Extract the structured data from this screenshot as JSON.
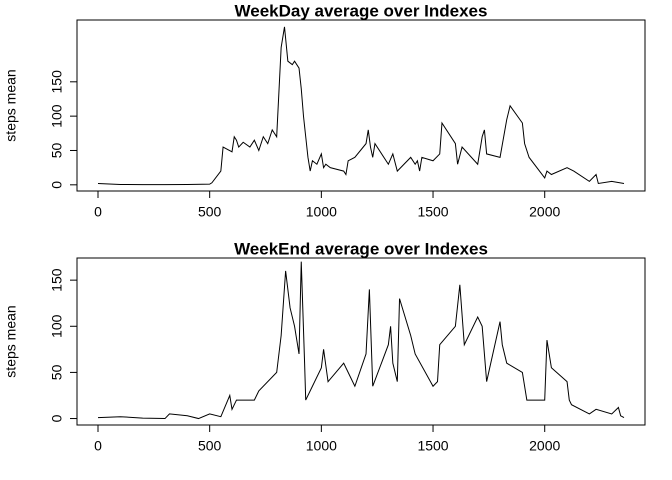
{
  "chart_data": [
    {
      "type": "line",
      "title": "WeekDay average over Indexes",
      "y_label": "steps mean",
      "color": "#000000",
      "x": [
        0,
        100,
        200,
        300,
        400,
        500,
        510,
        550,
        560,
        600,
        610,
        620,
        630,
        650,
        680,
        700,
        720,
        740,
        760,
        780,
        800,
        820,
        835,
        850,
        870,
        880,
        900,
        910,
        920,
        930,
        940,
        950,
        960,
        980,
        1000,
        1010,
        1020,
        1040,
        1100,
        1110,
        1120,
        1150,
        1200,
        1210,
        1220,
        1230,
        1240,
        1300,
        1320,
        1340,
        1400,
        1420,
        1430,
        1440,
        1450,
        1500,
        1530,
        1540,
        1600,
        1610,
        1630,
        1700,
        1720,
        1730,
        1740,
        1800,
        1830,
        1845,
        1900,
        1910,
        1930,
        2000,
        2010,
        2030,
        2100,
        2130,
        2200,
        2230,
        2240,
        2300,
        2355
      ],
      "values": [
        2,
        0.5,
        0.2,
        0.3,
        0.5,
        1,
        3,
        20,
        55,
        48,
        70,
        65,
        55,
        62,
        55,
        65,
        50,
        70,
        60,
        80,
        70,
        200,
        230,
        180,
        175,
        180,
        170,
        140,
        100,
        70,
        40,
        20,
        35,
        30,
        45,
        25,
        30,
        25,
        20,
        15,
        35,
        40,
        60,
        80,
        55,
        40,
        60,
        30,
        45,
        20,
        40,
        30,
        35,
        20,
        40,
        35,
        45,
        90,
        60,
        30,
        55,
        30,
        70,
        80,
        45,
        40,
        95,
        115,
        90,
        60,
        40,
        10,
        20,
        15,
        25,
        20,
        5,
        15,
        2,
        5,
        2
      ],
      "xlim": [
        -94,
        2449
      ],
      "ylim": [
        -9,
        240
      ],
      "xticks": [
        0,
        500,
        1000,
        1500,
        2000
      ],
      "yticks": [
        0,
        50,
        100,
        150
      ]
    },
    {
      "type": "line",
      "title": "WeekEnd average over Indexes",
      "y_label": "steps mean",
      "color": "#000000",
      "x": [
        0,
        100,
        200,
        300,
        320,
        400,
        450,
        500,
        550,
        590,
        600,
        620,
        700,
        720,
        800,
        820,
        840,
        860,
        880,
        900,
        910,
        925,
        930,
        960,
        1000,
        1010,
        1030,
        1100,
        1130,
        1150,
        1200,
        1215,
        1230,
        1300,
        1310,
        1320,
        1340,
        1350,
        1400,
        1420,
        1500,
        1520,
        1530,
        1600,
        1620,
        1640,
        1700,
        1720,
        1740,
        1800,
        1810,
        1830,
        1900,
        1920,
        2000,
        2010,
        2030,
        2100,
        2110,
        2120,
        2200,
        2230,
        2300,
        2330,
        2340,
        2355
      ],
      "values": [
        1,
        2,
        0.5,
        0,
        5,
        3,
        0,
        5,
        2,
        25,
        10,
        20,
        20,
        30,
        50,
        90,
        160,
        120,
        100,
        70,
        170,
        60,
        20,
        35,
        55,
        75,
        40,
        60,
        45,
        35,
        70,
        140,
        35,
        80,
        100,
        60,
        40,
        130,
        90,
        70,
        35,
        40,
        80,
        100,
        145,
        80,
        110,
        100,
        40,
        105,
        80,
        60,
        50,
        20,
        20,
        85,
        55,
        40,
        20,
        15,
        5,
        10,
        5,
        12,
        3,
        1
      ],
      "xlim": [
        -94,
        2449
      ],
      "ylim": [
        -7,
        174
      ],
      "xticks": [
        0,
        500,
        1000,
        1500,
        2000
      ],
      "yticks": [
        0,
        50,
        100,
        150
      ]
    }
  ]
}
